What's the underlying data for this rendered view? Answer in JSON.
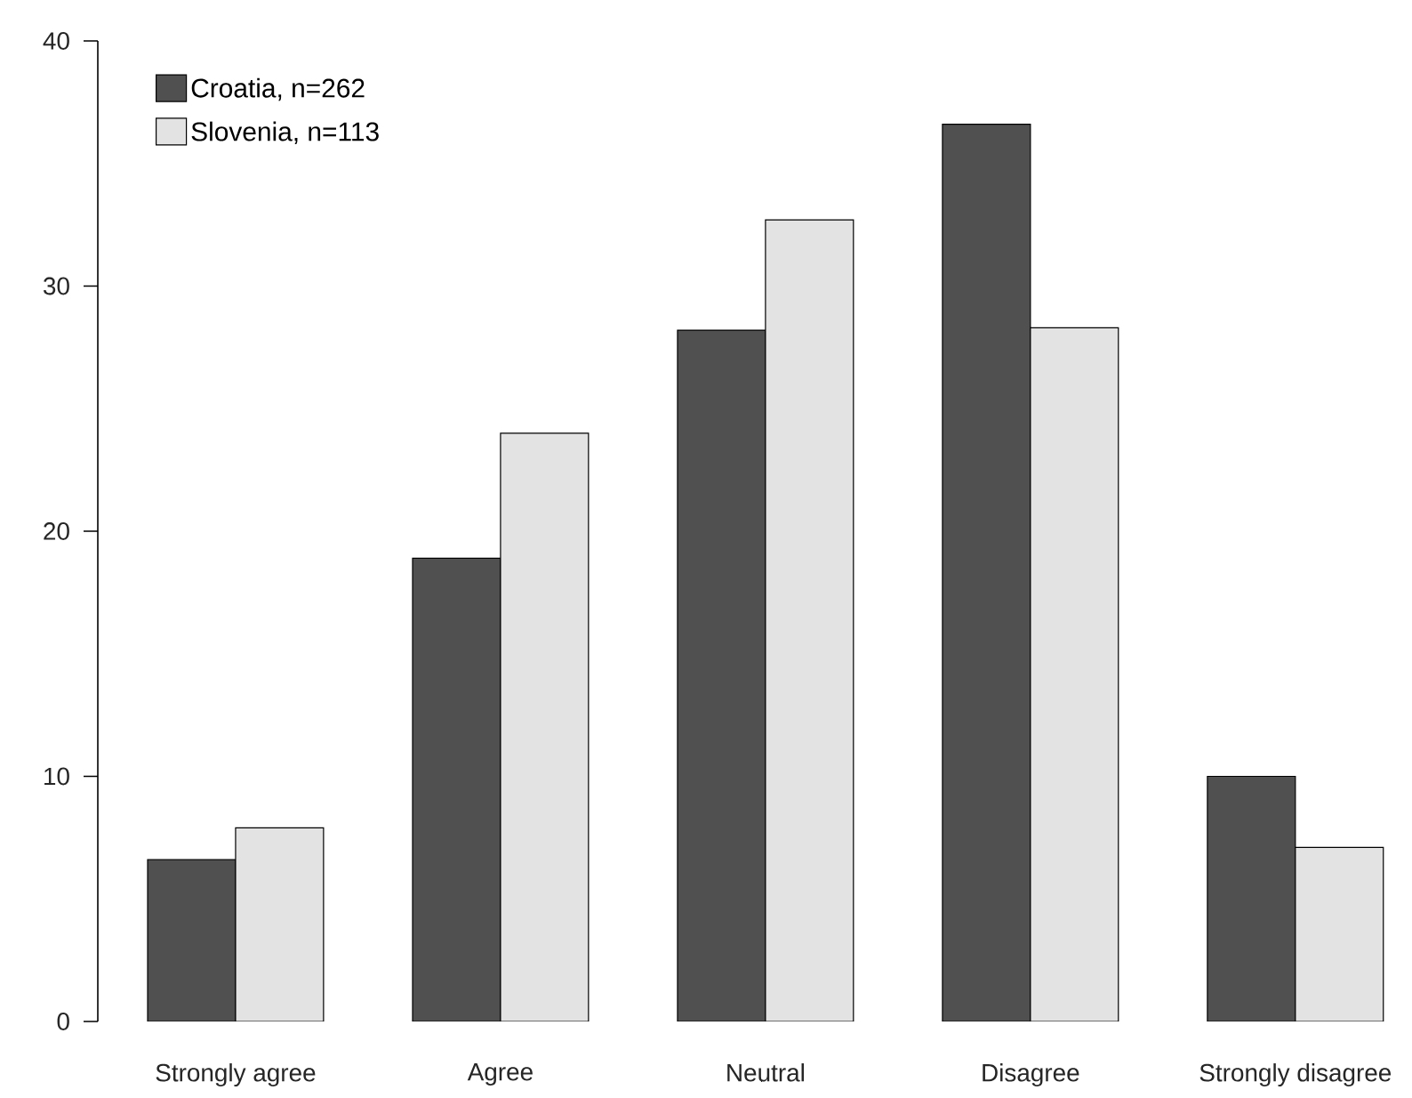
{
  "chart_data": {
    "type": "bar",
    "categories": [
      "Strongly agree",
      "Agree",
      "Neutral",
      "Disagree",
      "Strongly disagree"
    ],
    "series": [
      {
        "name": "Croatia, n=262",
        "color": "#505050",
        "values": [
          6.6,
          18.9,
          28.2,
          36.6,
          10.0
        ]
      },
      {
        "name": "Slovenia, n=113",
        "color": "#e3e3e3",
        "values": [
          7.9,
          24.0,
          32.7,
          28.3,
          7.1
        ]
      }
    ],
    "ylim": [
      0,
      40
    ],
    "yticks": [
      0,
      10,
      20,
      30,
      40
    ],
    "legend": "top left",
    "grid": false
  }
}
